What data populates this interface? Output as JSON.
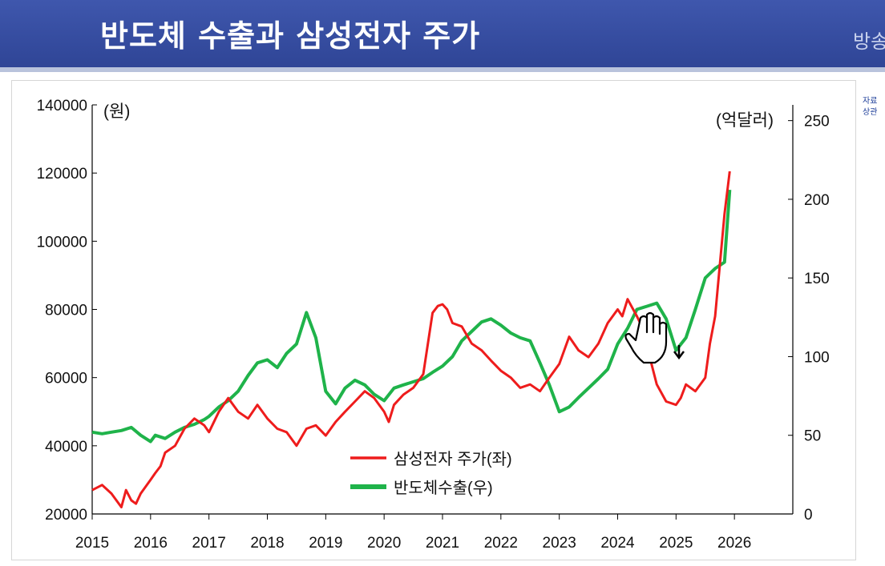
{
  "header": {
    "title": "반도체 수출과 삼성전자 주가",
    "corner_text": "방송"
  },
  "source_note": [
    "자료",
    "상관"
  ],
  "chart_data": {
    "type": "line",
    "title": "",
    "left_unit": "(원)",
    "right_unit": "(억달러)",
    "x_ticks": [
      "2015",
      "2016",
      "2017",
      "2018",
      "2019",
      "2020",
      "2021",
      "2022",
      "2023",
      "2024",
      "2025",
      "2026"
    ],
    "xlim": [
      2015,
      2027
    ],
    "left_ylim": [
      20000,
      140000
    ],
    "left_ticks": [
      20000,
      40000,
      60000,
      80000,
      100000,
      120000,
      140000
    ],
    "right_ylim": [
      0,
      260
    ],
    "right_ticks": [
      0,
      50,
      100,
      150,
      200,
      250
    ],
    "grid": false,
    "legend_position": "lower-center",
    "colors": {
      "red": "#ee1c1c",
      "green": "#1fb34a"
    },
    "series": [
      {
        "name": "삼성전자 주가(좌)",
        "axis": "left",
        "color": "#ee1c1c",
        "x": [
          2015.0,
          2015.17,
          2015.33,
          2015.5,
          2015.58,
          2015.67,
          2015.75,
          2015.83,
          2016.0,
          2016.08,
          2016.17,
          2016.25,
          2016.42,
          2016.58,
          2016.75,
          2016.92,
          2017.0,
          2017.17,
          2017.33,
          2017.5,
          2017.67,
          2017.83,
          2018.0,
          2018.17,
          2018.33,
          2018.5,
          2018.67,
          2018.83,
          2019.0,
          2019.17,
          2019.33,
          2019.5,
          2019.67,
          2019.83,
          2020.0,
          2020.08,
          2020.17,
          2020.33,
          2020.5,
          2020.67,
          2020.83,
          2020.92,
          2021.0,
          2021.08,
          2021.17,
          2021.33,
          2021.5,
          2021.67,
          2021.83,
          2022.0,
          2022.17,
          2022.33,
          2022.5,
          2022.67,
          2022.83,
          2023.0,
          2023.17,
          2023.33,
          2023.5,
          2023.67,
          2023.83,
          2024.0,
          2024.08,
          2024.17,
          2024.33,
          2024.5,
          2024.58,
          2024.67,
          2024.83,
          2025.0,
          2025.08,
          2025.17,
          2025.33,
          2025.5,
          2025.58,
          2025.67,
          2025.83,
          2025.92
        ],
        "values": [
          27000,
          28500,
          26000,
          22000,
          27000,
          24000,
          23000,
          26000,
          30000,
          32000,
          34000,
          38000,
          40000,
          45000,
          48000,
          46000,
          44000,
          50000,
          54000,
          50000,
          48000,
          52000,
          48000,
          45000,
          44000,
          40000,
          45000,
          46000,
          43000,
          47000,
          50000,
          53000,
          56000,
          54000,
          50000,
          47000,
          52000,
          55000,
          57000,
          61000,
          79000,
          81000,
          81500,
          80000,
          76000,
          75000,
          70000,
          68000,
          65000,
          62000,
          60000,
          57000,
          58000,
          56000,
          60000,
          64000,
          72000,
          68000,
          66000,
          70000,
          76000,
          80000,
          78000,
          83000,
          78000,
          72000,
          64000,
          58000,
          53000,
          52000,
          54000,
          58000,
          56000,
          60000,
          70000,
          78000,
          108000,
          120500
        ]
      },
      {
        "name": "반도체수출(우)",
        "axis": "right",
        "color": "#1fb34a",
        "x": [
          2015.0,
          2015.17,
          2015.33,
          2015.5,
          2015.67,
          2015.83,
          2016.0,
          2016.08,
          2016.25,
          2016.42,
          2016.58,
          2016.75,
          2016.92,
          2017.0,
          2017.17,
          2017.33,
          2017.5,
          2017.67,
          2017.83,
          2018.0,
          2018.17,
          2018.33,
          2018.5,
          2018.67,
          2018.83,
          2019.0,
          2019.17,
          2019.33,
          2019.5,
          2019.67,
          2019.83,
          2020.0,
          2020.17,
          2020.33,
          2020.5,
          2020.67,
          2020.83,
          2021.0,
          2021.17,
          2021.33,
          2021.5,
          2021.67,
          2021.83,
          2022.0,
          2022.17,
          2022.33,
          2022.5,
          2022.67,
          2022.83,
          2023.0,
          2023.17,
          2023.33,
          2023.5,
          2023.67,
          2023.83,
          2024.0,
          2024.17,
          2024.33,
          2024.5,
          2024.67,
          2024.83,
          2025.0,
          2025.17,
          2025.33,
          2025.5,
          2025.67,
          2025.83,
          2025.92
        ],
        "values": [
          52,
          51,
          52,
          53,
          55,
          50,
          46,
          50,
          48,
          52,
          55,
          57,
          60,
          62,
          68,
          72,
          78,
          88,
          96,
          98,
          93,
          102,
          108,
          128,
          112,
          78,
          70,
          80,
          85,
          82,
          76,
          72,
          80,
          82,
          84,
          86,
          90,
          94,
          100,
          110,
          116,
          122,
          124,
          120,
          115,
          112,
          110,
          96,
          82,
          65,
          68,
          74,
          80,
          86,
          92,
          108,
          118,
          130,
          132,
          134,
          124,
          104,
          112,
          130,
          150,
          156,
          160,
          206
        ]
      }
    ],
    "legend": [
      "삼성전자 주가(좌)",
      "반도체수출(우)"
    ]
  }
}
